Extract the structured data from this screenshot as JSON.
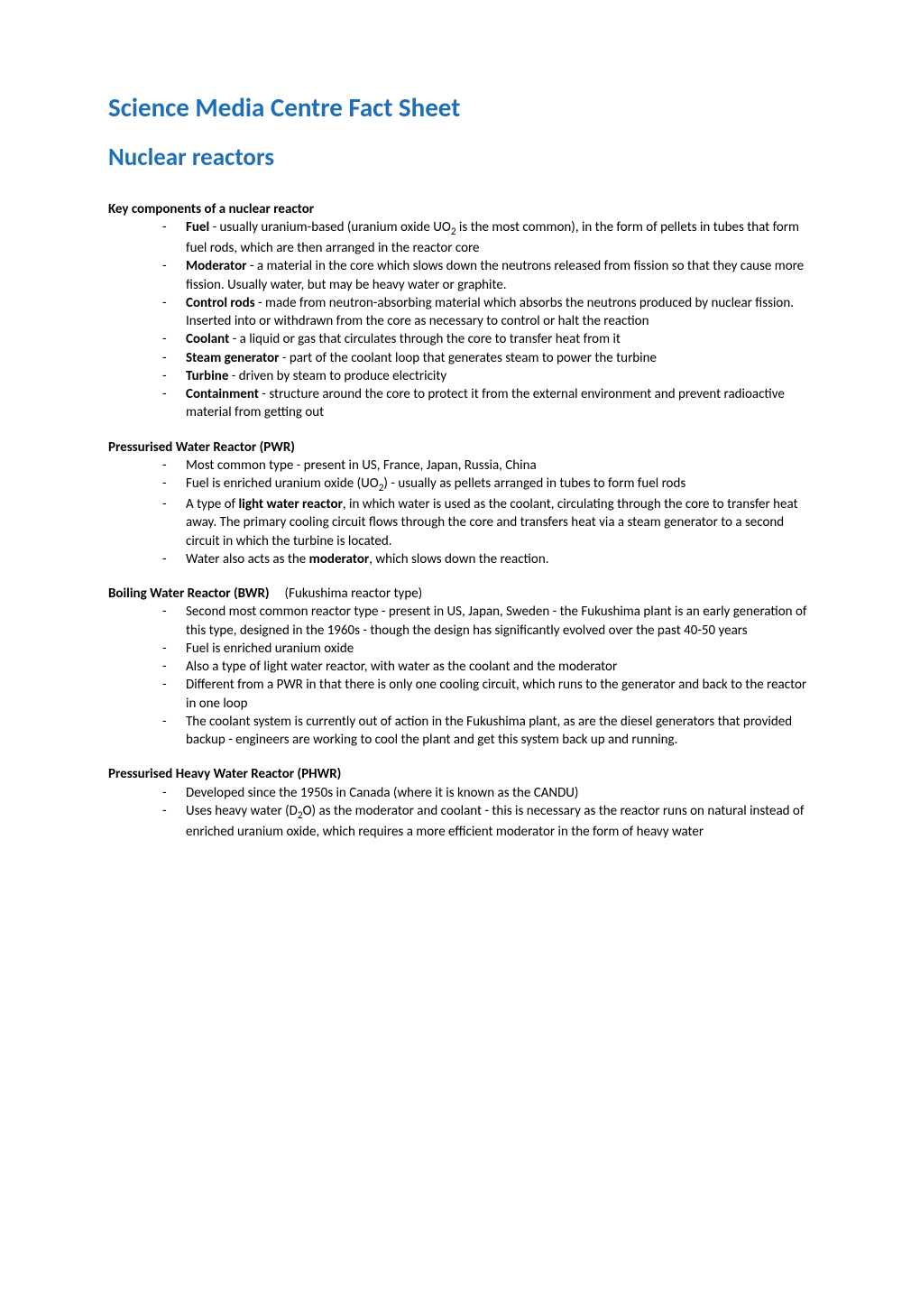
{
  "title_line1": "Science Media Centre Fact Sheet",
  "title_line2": "Nuclear reactors",
  "sections": {
    "key_components": {
      "header": "Key components of a nuclear reactor",
      "items": [
        {
          "bold": "Fuel",
          "text": " - usually uranium-based (uranium oxide UO",
          "sub": "2",
          "tail": " is the most common), in the form of pellets in tubes that form fuel rods, which are then arranged in the reactor core"
        },
        {
          "bold": "Moderator",
          "text": " - a material in the core which slows down the neutrons released from fission so that they cause more fission. Usually water, but may be heavy water or graphite."
        },
        {
          "bold": "Control rods",
          "text": " - made from neutron-absorbing material which absorbs the neutrons produced by nuclear fission. Inserted into or withdrawn from the core as necessary to control or halt the reaction"
        },
        {
          "bold": "Coolant",
          "text": " - a liquid or gas that circulates through the core to transfer heat from it"
        },
        {
          "bold": "Steam generator",
          "text": " - part of the coolant loop that generates steam to power the turbine"
        },
        {
          "bold": "Turbine",
          "text": " - driven by steam to produce electricity"
        },
        {
          "bold": "Containment",
          "text": " - structure around the core to protect it from the external environment and prevent radioactive material from getting out"
        }
      ]
    },
    "pwr": {
      "header": "Pressurised Water Reactor (PWR)",
      "items": [
        {
          "text": "Most common type  - present in US, France, Japan, Russia, China"
        },
        {
          "pre": "Fuel is enriched uranium oxide (UO",
          "sub": "2",
          "text": ") - usually as pellets arranged in tubes to form fuel rods"
        },
        {
          "pre": "A type of ",
          "bold": "light water reactor",
          "text": ", in which water is used as the coolant, circulating through the core to transfer heat away. The primary cooling circuit flows through the core and transfers heat via a steam generator to a second circuit in which the turbine is located."
        },
        {
          "pre": "Water also acts as the ",
          "bold": "moderator",
          "text": ", which slows down the reaction."
        }
      ]
    },
    "bwr": {
      "header": "Boiling Water Reactor (BWR)",
      "header_suffix": "     (Fukushima reactor type)",
      "items": [
        {
          "text": "Second most common reactor type - present in US, Japan, Sweden - the Fukushima plant is an early generation of this type, designed in the 1960s - though the design has significantly evolved over the past 40-50 years"
        },
        {
          "text": "Fuel is enriched uranium oxide"
        },
        {
          "text": "Also a type of light water reactor, with water as the coolant and the moderator"
        },
        {
          "text": "Different from a PWR in that there is only one cooling circuit, which runs to the generator and back to the reactor in one loop"
        },
        {
          "text": "The coolant system is currently out of action in the Fukushima plant, as are the diesel generators that provided backup - engineers are working to cool the plant and get this system back up and running."
        }
      ]
    },
    "phwr": {
      "header": "Pressurised Heavy Water Reactor (PHWR)",
      "items": [
        {
          "text": "Developed since the 1950s in Canada (where it is known as the CANDU)"
        },
        {
          "pre": "Uses heavy water (D",
          "sub": "2",
          "text": "O) as the moderator and coolant - this is necessary as the reactor runs on natural instead of enriched uranium oxide, which requires a more efficient moderator in the form of heavy water"
        }
      ]
    }
  }
}
